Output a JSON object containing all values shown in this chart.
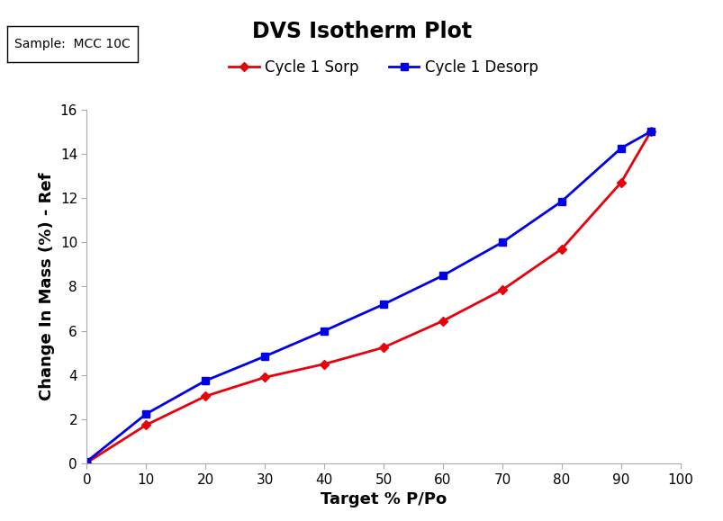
{
  "title": "DVS Isotherm Plot",
  "xlabel": "Target % P/Po",
  "ylabel": "Change In Mass (%) - Ref",
  "sample_label": "Sample:  MCC 10C",
  "xlim": [
    0,
    100
  ],
  "ylim": [
    0,
    16
  ],
  "xticks": [
    0,
    10,
    20,
    30,
    40,
    50,
    60,
    70,
    80,
    90,
    100
  ],
  "yticks": [
    0,
    2,
    4,
    6,
    8,
    10,
    12,
    14,
    16
  ],
  "sorp_x": [
    0,
    10,
    20,
    30,
    40,
    50,
    60,
    70,
    80,
    90,
    95
  ],
  "sorp_y": [
    0.05,
    1.75,
    3.05,
    3.9,
    4.5,
    5.25,
    6.45,
    7.85,
    9.7,
    12.7,
    15.0
  ],
  "desorp_x": [
    0,
    10,
    20,
    30,
    40,
    50,
    60,
    70,
    80,
    90,
    95
  ],
  "desorp_y": [
    0.1,
    2.25,
    3.75,
    4.85,
    6.0,
    7.2,
    8.5,
    10.0,
    11.85,
    14.25,
    15.0
  ],
  "sorp_color": "#e8000a",
  "desorp_color": "#0000e8",
  "background_color": "#ffffff",
  "legend_sorp": "Cycle 1 Sorp",
  "legend_desorp": "Cycle 1 Desorp",
  "title_fontsize": 17,
  "label_fontsize": 13,
  "tick_fontsize": 11,
  "legend_fontsize": 12,
  "sample_fontsize": 10
}
